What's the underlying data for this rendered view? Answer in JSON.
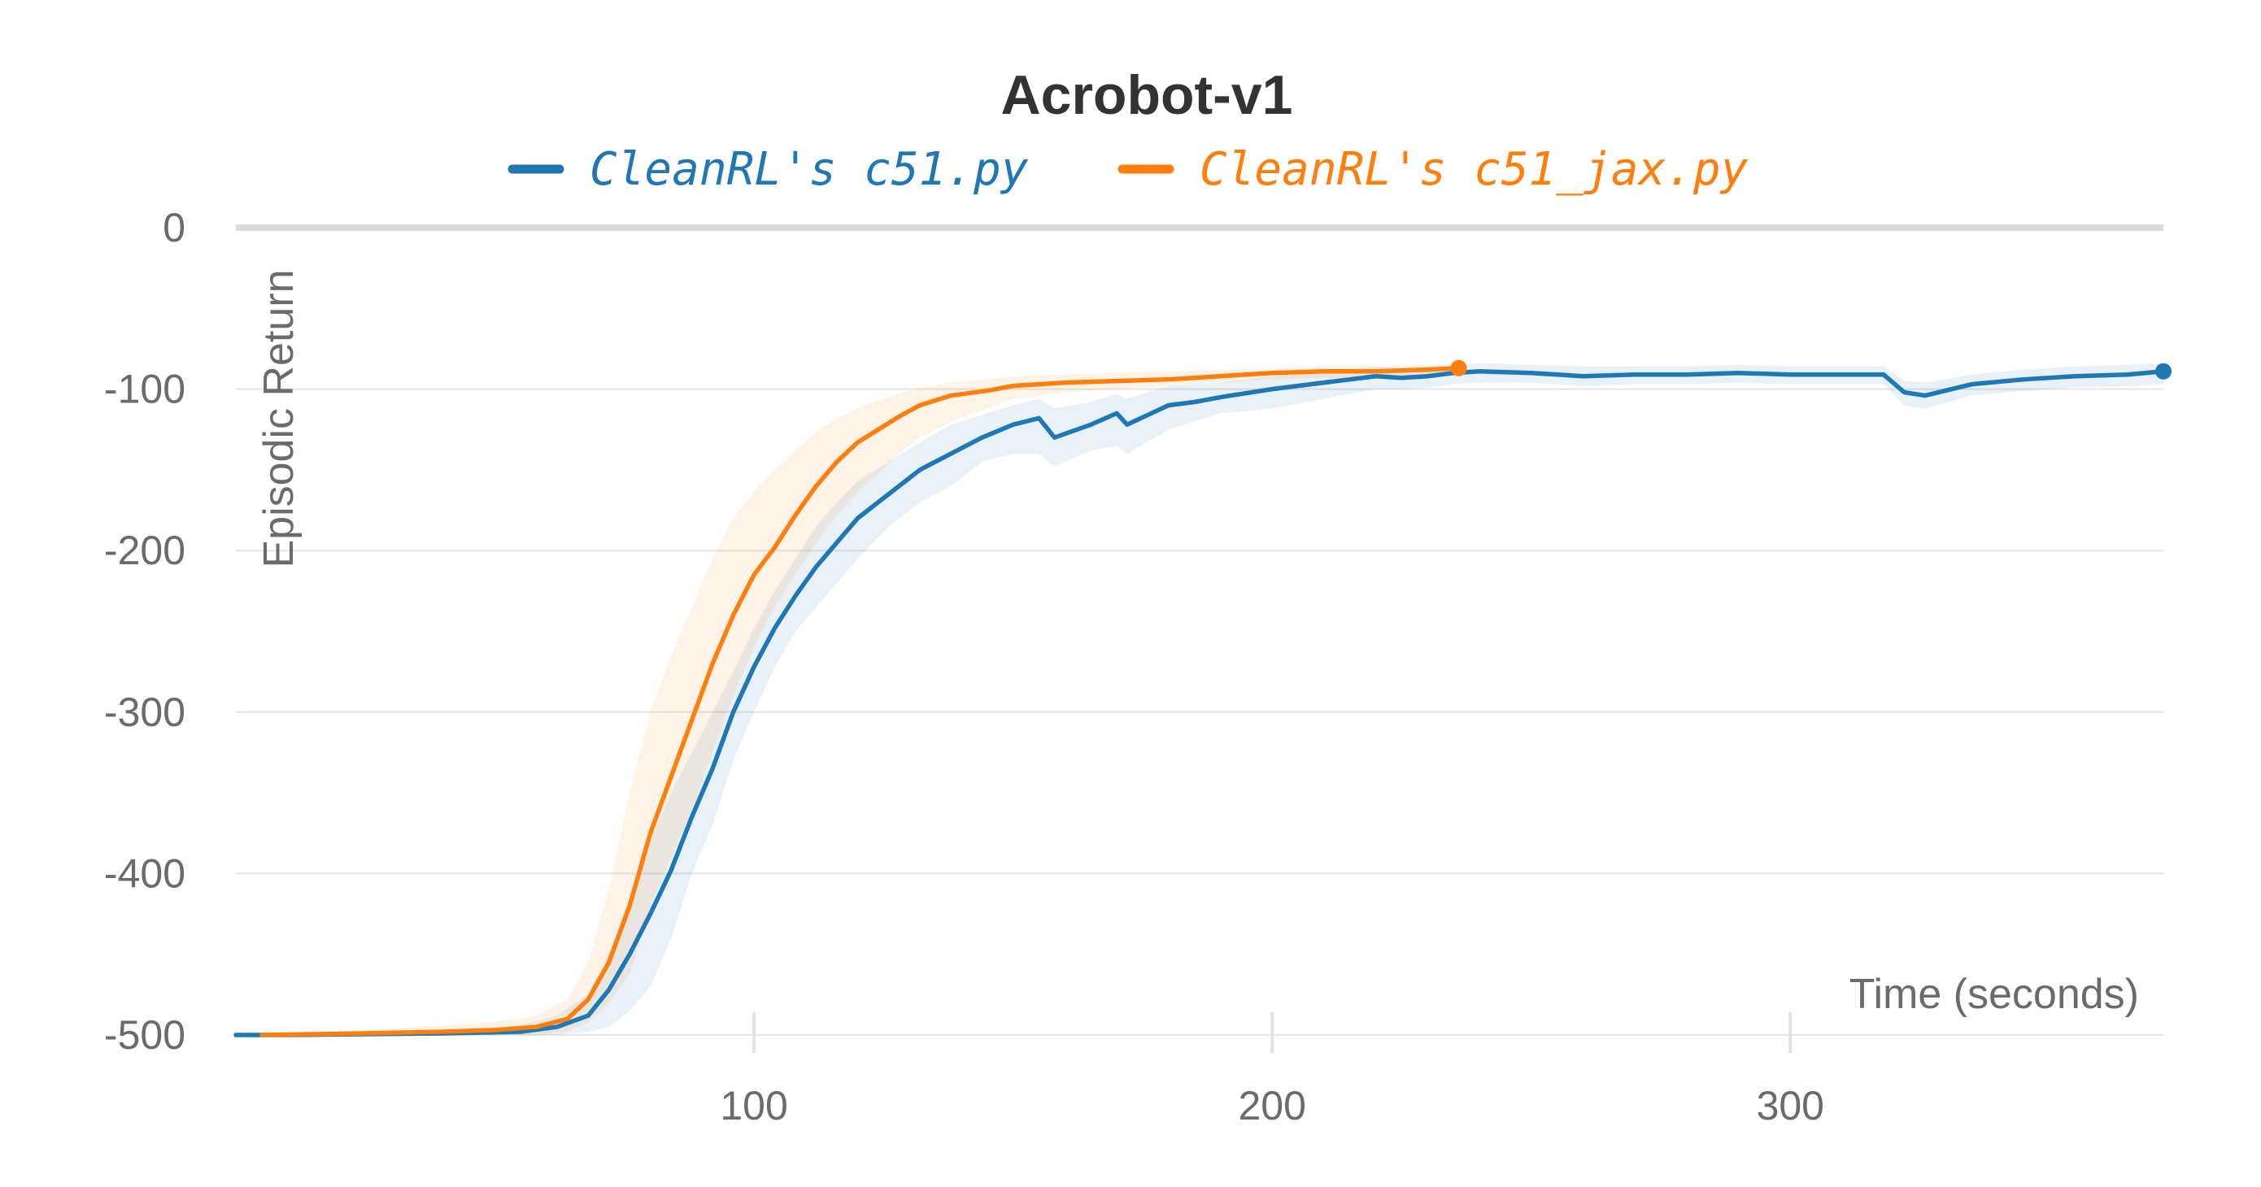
{
  "chart_data": {
    "type": "line",
    "title": "Acrobot-v1",
    "xlabel": "Time (seconds)",
    "ylabel": "Episodic Return",
    "xlim": [
      0,
      372
    ],
    "ylim": [
      -500,
      0
    ],
    "x_ticks": [
      100,
      200,
      300
    ],
    "y_ticks": [
      0,
      -100,
      -200,
      -300,
      -400,
      -500
    ],
    "grid": true,
    "legend_position": "top-center",
    "series": [
      {
        "name": "CleanRL's c51.py",
        "color": "#1f77b4",
        "x": [
          0,
          10,
          40,
          55,
          62,
          68,
          72,
          76,
          80,
          84,
          88,
          92,
          96,
          100,
          104,
          108,
          112,
          116,
          120,
          126,
          132,
          138,
          144,
          150,
          155,
          158,
          165,
          170,
          172,
          180,
          185,
          190,
          200,
          210,
          215,
          220,
          225,
          230,
          235,
          240,
          250,
          260,
          270,
          280,
          290,
          300,
          310,
          318,
          322,
          326,
          335,
          345,
          355,
          365,
          372
        ],
        "y": [
          -500,
          -500,
          -499,
          -498,
          -495,
          -488,
          -472,
          -450,
          -425,
          -398,
          -365,
          -335,
          -300,
          -272,
          -248,
          -228,
          -210,
          -195,
          -180,
          -165,
          -150,
          -140,
          -130,
          -122,
          -118,
          -130,
          -122,
          -115,
          -122,
          -110,
          -108,
          -105,
          -100,
          -96,
          -94,
          -92,
          -93,
          -92,
          -90,
          -89,
          -90,
          -92,
          -91,
          -91,
          -90,
          -91,
          -91,
          -91,
          -102,
          -104,
          -97,
          -94,
          -92,
          -91,
          -89
        ],
        "lower": [
          -500,
          -500,
          -500,
          -500,
          -500,
          -498,
          -495,
          -485,
          -470,
          -440,
          -400,
          -370,
          -330,
          -300,
          -272,
          -250,
          -235,
          -220,
          -205,
          -185,
          -170,
          -160,
          -145,
          -140,
          -140,
          -148,
          -138,
          -135,
          -140,
          -125,
          -120,
          -115,
          -112,
          -106,
          -103,
          -100,
          -100,
          -99,
          -97,
          -96,
          -96,
          -98,
          -97,
          -97,
          -96,
          -97,
          -97,
          -97,
          -110,
          -112,
          -104,
          -101,
          -99,
          -98,
          -97
        ],
        "upper": [
          -500,
          -500,
          -497,
          -494,
          -488,
          -475,
          -450,
          -415,
          -380,
          -350,
          -325,
          -300,
          -275,
          -248,
          -225,
          -205,
          -185,
          -170,
          -157,
          -145,
          -133,
          -122,
          -116,
          -110,
          -106,
          -112,
          -108,
          -103,
          -106,
          -98,
          -97,
          -96,
          -92,
          -89,
          -88,
          -86,
          -87,
          -86,
          -85,
          -84,
          -85,
          -86,
          -86,
          -86,
          -85,
          -86,
          -86,
          -86,
          -95,
          -96,
          -91,
          -88,
          -86,
          -85,
          -84
        ]
      },
      {
        "name": "CleanRL's c51_jax.py",
        "color": "#ff7f0e",
        "x": [
          5,
          25,
          40,
          50,
          58,
          64,
          68,
          72,
          76,
          80,
          84,
          88,
          92,
          96,
          100,
          104,
          108,
          112,
          116,
          120,
          124,
          128,
          132,
          138,
          145,
          150,
          160,
          170,
          180,
          190,
          200,
          210,
          220,
          230,
          236
        ],
        "y": [
          -500,
          -499,
          -498,
          -497,
          -495,
          -490,
          -478,
          -455,
          -420,
          -375,
          -340,
          -305,
          -270,
          -240,
          -215,
          -198,
          -178,
          -160,
          -145,
          -133,
          -125,
          -117,
          -110,
          -104,
          -101,
          -98,
          -96,
          -95,
          -94,
          -92,
          -90,
          -89,
          -89,
          -88,
          -87
        ],
        "lower": [
          -500,
          -500,
          -500,
          -500,
          -500,
          -498,
          -492,
          -480,
          -462,
          -420,
          -390,
          -360,
          -325,
          -290,
          -260,
          -235,
          -215,
          -195,
          -178,
          -164,
          -152,
          -140,
          -130,
          -120,
          -112,
          -106,
          -102,
          -100,
          -98,
          -96,
          -94,
          -93,
          -92,
          -91,
          -90
        ],
        "upper": [
          -500,
          -497,
          -494,
          -492,
          -488,
          -478,
          -455,
          -410,
          -350,
          -300,
          -265,
          -235,
          -205,
          -180,
          -163,
          -150,
          -138,
          -127,
          -118,
          -112,
          -107,
          -103,
          -99,
          -96,
          -94,
          -92,
          -91,
          -90,
          -89,
          -88,
          -87,
          -86,
          -86,
          -85,
          -84
        ]
      }
    ]
  }
}
